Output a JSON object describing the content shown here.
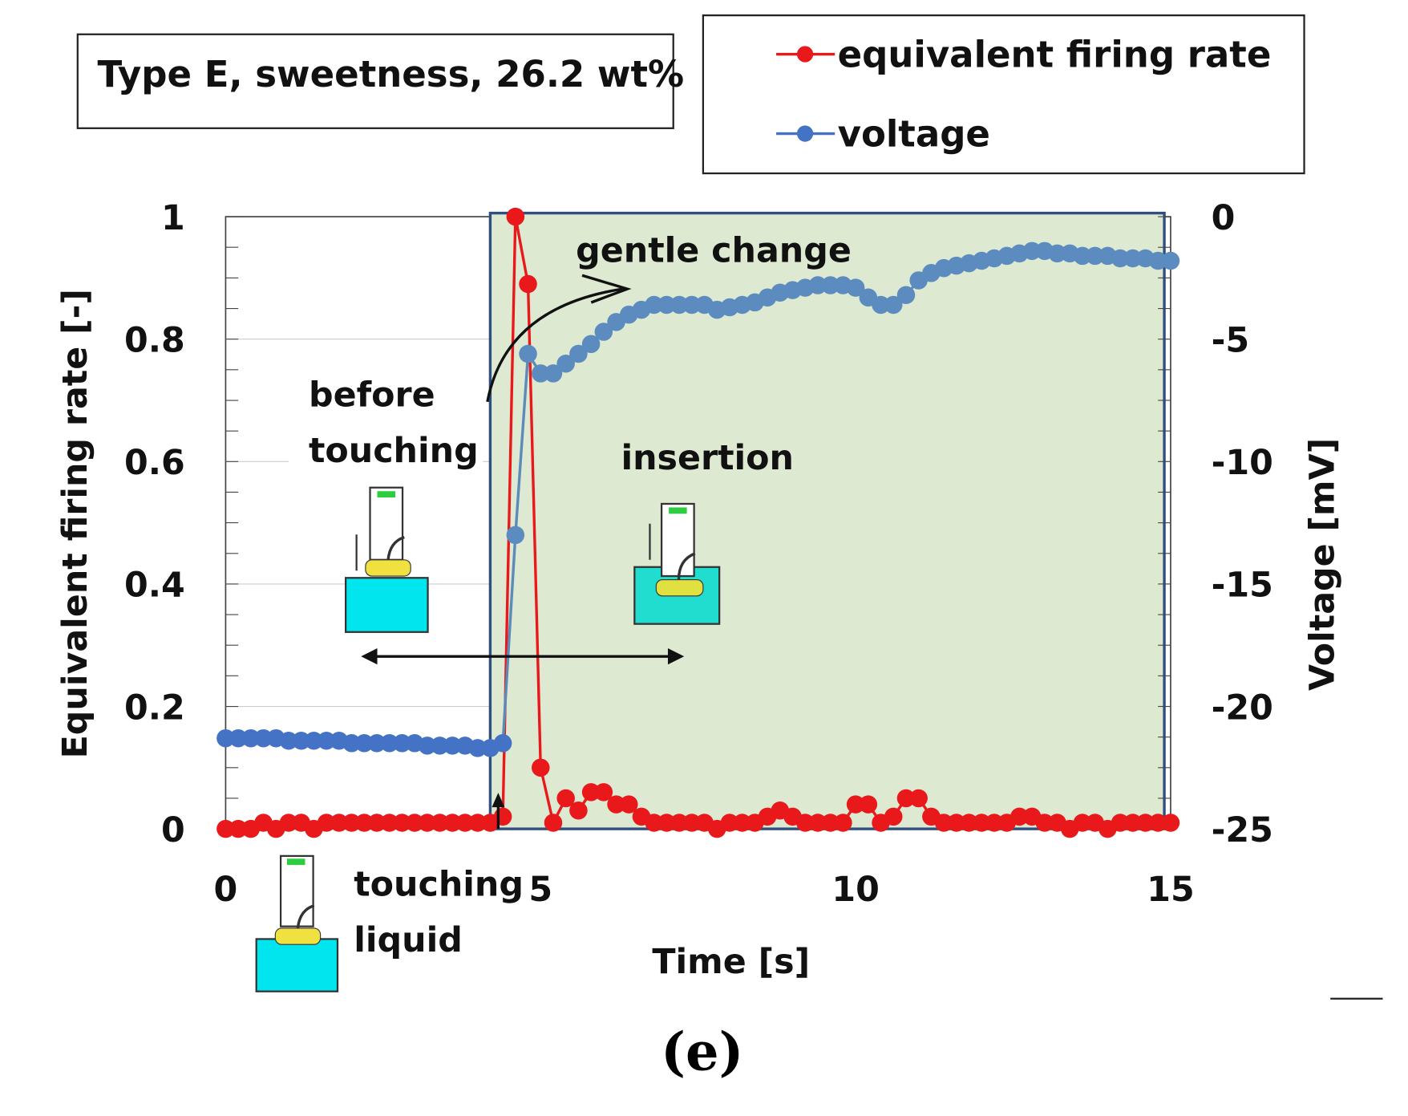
{
  "chart_data": {
    "type": "line",
    "title_box": "Type E, sweetness, 26.2 wt%",
    "xlabel": "Time   [s]",
    "ylabel_left": "Equivalent firing rate   [-]",
    "ylabel_right": "Voltage   [mV]",
    "xlim": [
      0,
      15
    ],
    "ylim_left": [
      0,
      1
    ],
    "ylim_right": [
      -25,
      0
    ],
    "x_ticks": [
      "0",
      "5",
      "10",
      "15"
    ],
    "y_left_ticks": [
      "0",
      "0.2",
      "0.4",
      "0.6",
      "0.8",
      "1"
    ],
    "y_right_ticks": [
      "-25",
      "-20",
      "-15",
      "-10",
      "-5",
      "0"
    ],
    "legend_position": "top-right",
    "series": [
      {
        "name": "equivalent firing rate",
        "axis": "left",
        "color": "#e8181b",
        "values": [
          0.0,
          0.0,
          0.0,
          0.01,
          0.0,
          0.01,
          0.01,
          0.0,
          0.01,
          0.01,
          0.01,
          0.01,
          0.01,
          0.01,
          0.01,
          0.01,
          0.01,
          0.01,
          0.01,
          0.01,
          0.01,
          0.01,
          0.02,
          1.0,
          0.89,
          0.1,
          0.01,
          0.05,
          0.03,
          0.06,
          0.06,
          0.04,
          0.04,
          0.02,
          0.01,
          0.01,
          0.01,
          0.01,
          0.01,
          0.0,
          0.01,
          0.01,
          0.01,
          0.02,
          0.03,
          0.02,
          0.01,
          0.01,
          0.01,
          0.01,
          0.04,
          0.04,
          0.01,
          0.02,
          0.05,
          0.05,
          0.02,
          0.01,
          0.01,
          0.01,
          0.01,
          0.01,
          0.01,
          0.02,
          0.02,
          0.01,
          0.01,
          0.0,
          0.01,
          0.01,
          0.0,
          0.01,
          0.01,
          0.01,
          0.01,
          0.01
        ]
      },
      {
        "name": "voltage",
        "axis": "right",
        "color": "#4472c4",
        "values": [
          -21.3,
          -21.3,
          -21.3,
          -21.3,
          -21.3,
          -21.4,
          -21.4,
          -21.4,
          -21.4,
          -21.4,
          -21.5,
          -21.5,
          -21.5,
          -21.5,
          -21.5,
          -21.5,
          -21.6,
          -21.6,
          -21.6,
          -21.6,
          -21.7,
          -21.7,
          -21.5,
          -13.0,
          -5.6,
          -6.4,
          -6.4,
          -6.0,
          -5.6,
          -5.2,
          -4.7,
          -4.3,
          -4.0,
          -3.8,
          -3.6,
          -3.6,
          -3.6,
          -3.6,
          -3.6,
          -3.8,
          -3.7,
          -3.6,
          -3.5,
          -3.3,
          -3.1,
          -3.0,
          -2.9,
          -2.8,
          -2.8,
          -2.8,
          -2.9,
          -3.3,
          -3.6,
          -3.6,
          -3.2,
          -2.6,
          -2.3,
          -2.1,
          -2.0,
          -1.9,
          -1.8,
          -1.7,
          -1.6,
          -1.5,
          -1.4,
          -1.4,
          -1.5,
          -1.5,
          -1.6,
          -1.6,
          -1.6,
          -1.7,
          -1.7,
          -1.7,
          -1.8,
          -1.8
        ]
      }
    ],
    "x_start": 0,
    "x_step": 0.2,
    "shaded_region": {
      "x": [
        4.2,
        14.9
      ],
      "label": "insertion",
      "color": "#dde9d1"
    },
    "annotations": [
      "gentle change",
      "before",
      "touching",
      "insertion",
      "touching",
      "liquid"
    ],
    "panel_label": "(e)"
  }
}
